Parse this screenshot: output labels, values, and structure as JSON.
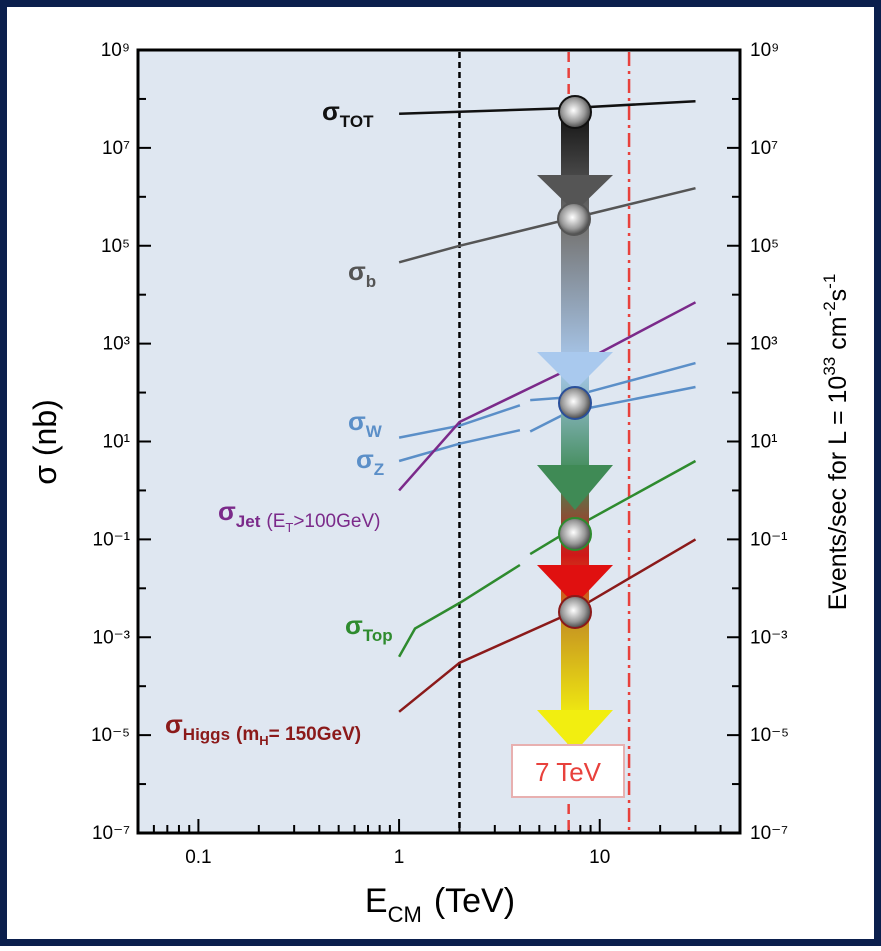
{
  "chart_data": {
    "type": "line",
    "log_x": true,
    "log_y": true,
    "xlim": [
      0.05,
      50
    ],
    "xticks": [
      0.1,
      1,
      10
    ],
    "xminorticks": [
      0.06,
      0.07,
      0.08,
      0.09,
      0.2,
      0.3,
      0.4,
      0.5,
      0.6,
      0.7,
      0.8,
      0.9,
      2,
      3,
      4,
      5,
      6,
      7,
      8,
      9,
      20,
      30,
      40
    ],
    "ylim": [
      1e-07,
      1000000000.0
    ],
    "yticks": [
      {
        "value": 1000000000.0,
        "label": "10⁹"
      },
      {
        "value": 10000000.0,
        "label": "10⁷"
      },
      {
        "value": 100000.0,
        "label": "10⁵"
      },
      {
        "value": 1000,
        "label": "10³"
      },
      {
        "value": 10,
        "label": "10¹"
      },
      {
        "value": 0.1,
        "label": "10⁻¹"
      },
      {
        "value": 0.001,
        "label": "10⁻³"
      },
      {
        "value": 1e-05,
        "label": "10⁻⁵"
      },
      {
        "value": 1e-07,
        "label": "10⁻⁷"
      }
    ],
    "yminorticks": [
      100000000.0,
      1000000.0,
      10000.0,
      100,
      1,
      0.01,
      0.0001,
      1e-06
    ],
    "y2lim": [
      1e-07,
      1000000000.0
    ],
    "y2ticks": [
      {
        "value": 1000000000.0,
        "label": "10⁹"
      },
      {
        "value": 10000000.0,
        "label": "10⁷"
      },
      {
        "value": 100000.0,
        "label": "10⁵"
      },
      {
        "value": 1000,
        "label": "10³"
      },
      {
        "value": 10,
        "label": "10¹"
      },
      {
        "value": 0.1,
        "label": "10⁻¹"
      },
      {
        "value": 0.001,
        "label": "10⁻³"
      },
      {
        "value": 1e-05,
        "label": "10⁻⁵"
      },
      {
        "value": 1e-07,
        "label": "10⁻⁷"
      }
    ],
    "x_label": [
      "E",
      "CM",
      "(TeV)"
    ],
    "y_label": "σ  (nb)",
    "y2_label": [
      "Events/sec for L = 10",
      "33",
      " cm",
      "-2",
      "s",
      "-1"
    ],
    "series": [
      {
        "symbol": "σ",
        "subscript": "TOT",
        "color": "#111111",
        "x": [
          1,
          7,
          30
        ],
        "values": [
          50000000.0,
          65000000.0,
          90000000.0
        ]
      },
      {
        "symbol": "σ",
        "subscript": "b",
        "color": "#555555",
        "x": [
          1,
          2,
          7,
          30
        ],
        "values": [
          46000,
          100000,
          350000,
          1500000
        ]
      },
      {
        "symbol": "σ",
        "subscript": "W",
        "color": "#5b8fc8",
        "x": [
          1,
          2,
          4,
          4.2,
          4.5,
          7,
          30
        ],
        "values": [
          12,
          21,
          55,
          null,
          70,
          80,
          400
        ]
      },
      {
        "symbol": "σ",
        "subscript": "Z",
        "color": "#5b8fc8",
        "x": [
          1,
          2,
          4,
          4.2,
          4.5,
          7,
          30
        ],
        "values": [
          4,
          9,
          17,
          null,
          16,
          40,
          130
        ]
      },
      {
        "symbol": "σ",
        "subscript": "Jet",
        "note": [
          "(E",
          "T",
          ">100GeV)"
        ],
        "color": "#7b2a8a",
        "x": [
          1,
          2,
          7,
          30
        ],
        "values": [
          1,
          25,
          300,
          7000
        ]
      },
      {
        "symbol": "σ",
        "subscript": "Top",
        "color": "#2e8b2e",
        "x": [
          1,
          1.2,
          2,
          4,
          4.2,
          4.5,
          7,
          30
        ],
        "values": [
          0.0004,
          0.0015,
          0.005,
          0.03,
          null,
          0.05,
          0.15,
          4
        ]
      },
      {
        "symbol": "σ",
        "subscript": "Higgs",
        "note": [
          "(m",
          "H",
          "= 150GeV)"
        ],
        "color": "#8b1a1a",
        "x": [
          1,
          2,
          7,
          30
        ],
        "values": [
          3e-05,
          0.0003,
          0.003,
          0.1
        ]
      }
    ],
    "vlines": [
      {
        "x": 2,
        "color": "#000000",
        "dash": "6 4"
      },
      {
        "x": 7,
        "color": "#e8413c",
        "dash": "10 6"
      },
      {
        "x": 14,
        "color": "#e8413c",
        "dash": "14 5 3 5"
      }
    ],
    "annotation": "7 TeV"
  }
}
